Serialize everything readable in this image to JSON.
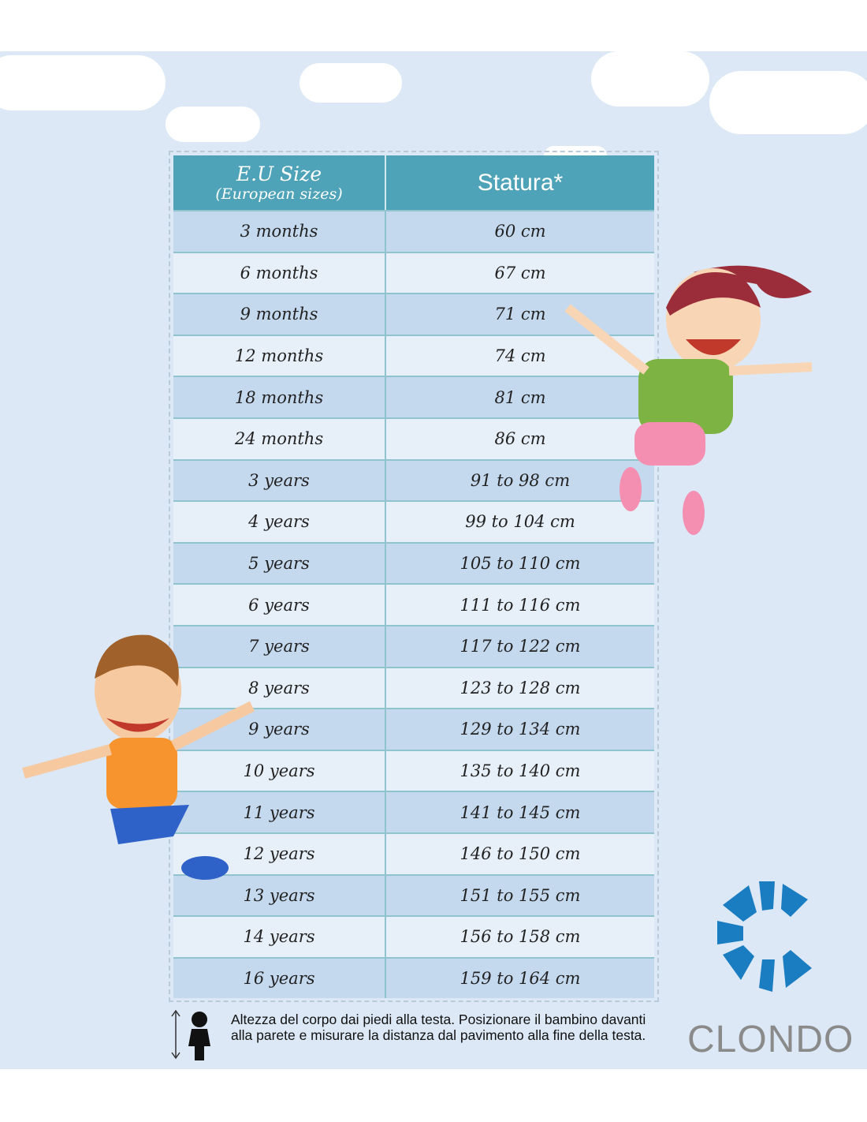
{
  "table": {
    "header": {
      "size_title": "E.U Size",
      "size_subtitle": "(European sizes)",
      "height_title": "Statura*"
    },
    "rows": [
      {
        "size": "3 months",
        "height": "60 cm"
      },
      {
        "size": "6 months",
        "height": "67 cm"
      },
      {
        "size": "9 months",
        "height": "71 cm"
      },
      {
        "size": "12 months",
        "height": "74 cm"
      },
      {
        "size": "18 months",
        "height": "81 cm"
      },
      {
        "size": "24 months",
        "height": "86 cm"
      },
      {
        "size": "3 years",
        "height": "91 to 98 cm"
      },
      {
        "size": "4 years",
        "height": "99 to 104 cm"
      },
      {
        "size": "5 years",
        "height": "105 to 110 cm"
      },
      {
        "size": "6 years",
        "height": "111 to 116 cm"
      },
      {
        "size": "7 years",
        "height": "117 to 122 cm"
      },
      {
        "size": "8 years",
        "height": "123 to 128 cm"
      },
      {
        "size": "9 years",
        "height": "129 to 134 cm"
      },
      {
        "size": "10 years",
        "height": "135 to 140 cm"
      },
      {
        "size": "11 years",
        "height": "141 to 145 cm"
      },
      {
        "size": "12 years",
        "height": "146 to 150 cm"
      },
      {
        "size": "13 years",
        "height": "151 to 155 cm"
      },
      {
        "size": "14 years",
        "height": "156 to 158 cm"
      },
      {
        "size": "16 years",
        "height": "159 to 164 cm"
      }
    ]
  },
  "footnote": "Altezza del corpo dai piedi alla testa. Posizionare il bambino davanti alla parete e misurare la distanza dal pavimento alla fine della testa.",
  "brand": {
    "name": "CLONDO",
    "color": "#1a7cc1"
  },
  "colors": {
    "header": "#4fa3b8",
    "row_dark": "#c4d8ee",
    "row_light": "#e7eff8",
    "sky": "#dce8f5"
  }
}
